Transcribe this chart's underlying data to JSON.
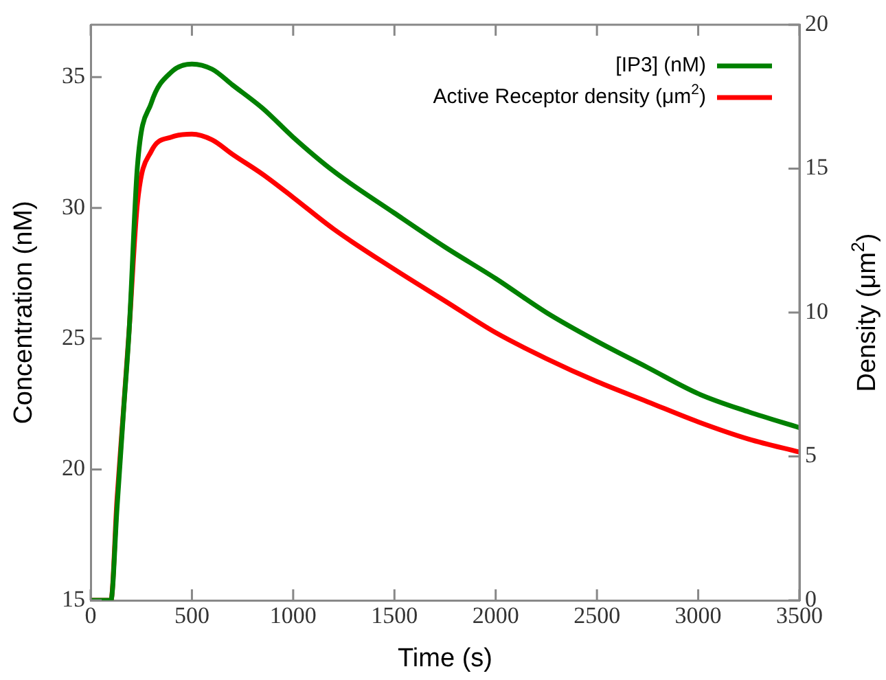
{
  "chart_data": {
    "type": "line",
    "xlabel": "Time (s)",
    "ylabel": "Concentration (nM)",
    "y2label": "Density (μm$^{2}$)",
    "x": [
      0,
      100,
      130,
      163,
      190,
      231,
      299,
      400,
      500,
      600,
      700,
      850,
      1000,
      1200,
      1500,
      1750,
      2000,
      2250,
      2500,
      2750,
      3000,
      3250,
      3500
    ],
    "xlim": [
      0,
      3500
    ],
    "xticks": [
      0,
      500,
      1000,
      1500,
      2000,
      2500,
      3000,
      3500
    ],
    "ylim": [
      15,
      37
    ],
    "yticks": [
      15,
      20,
      25,
      30,
      35
    ],
    "y2lim": [
      0,
      20
    ],
    "y2ticks": [
      0,
      5,
      10,
      15,
      20
    ],
    "grid": false,
    "legend": "top right",
    "marker": "none",
    "line_style": "solid",
    "series": [
      {
        "name": "[IP3] (nM)",
        "color": "#008000",
        "values": [
          15,
          15,
          18.5,
          22.3,
          25.3,
          31.6,
          34.0,
          35.2,
          35.5,
          35.3,
          34.7,
          33.8,
          32.7,
          31.4,
          29.8,
          28.5,
          27.3,
          26.0,
          24.9,
          23.9,
          22.9,
          22.2,
          21.6
        ]
      },
      {
        "name": "Active Receptor density (μm$^{2}$)",
        "color": "#ff0000",
        "axis": "y2",
        "values": [
          0,
          0,
          3.5,
          6.7,
          9.4,
          13.8,
          15.6,
          16.1,
          16.2,
          16.0,
          15.5,
          14.8,
          14.0,
          12.9,
          11.5,
          10.4,
          9.3,
          8.4,
          7.6,
          6.9,
          6.2,
          5.6,
          5.15
        ]
      }
    ]
  }
}
